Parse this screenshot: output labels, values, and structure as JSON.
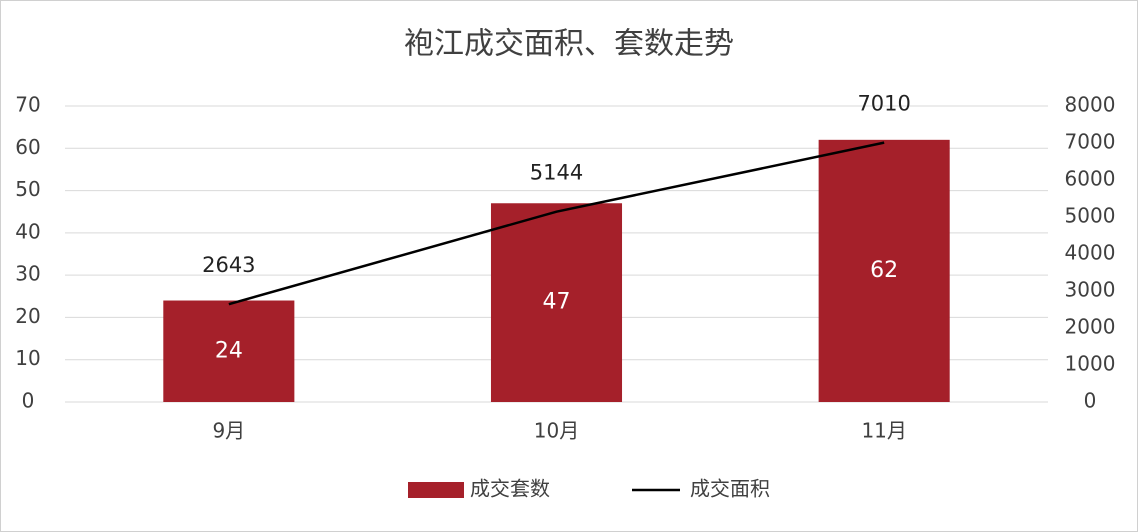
{
  "chart_data": {
    "type": "combo",
    "title": "袍江成交面积、套数走势",
    "categories": [
      "9月",
      "10月",
      "11月"
    ],
    "series": [
      {
        "name": "成交套数",
        "type": "bar",
        "color": "#a5202a",
        "values": [
          24,
          47,
          62
        ],
        "axis": "y"
      },
      {
        "name": "成交面积",
        "type": "line",
        "color": "#000000",
        "values": [
          2643,
          5144,
          7010
        ],
        "axis": "y2"
      }
    ],
    "ylim": [
      0,
      70
    ],
    "yticks": [
      0,
      10,
      20,
      30,
      40,
      50,
      60,
      70
    ],
    "y2lim": [
      0,
      8000
    ],
    "y2ticks": [
      0,
      1000,
      2000,
      3000,
      4000,
      5000,
      6000,
      7000,
      8000
    ],
    "grid": true,
    "legend": "bottom"
  }
}
